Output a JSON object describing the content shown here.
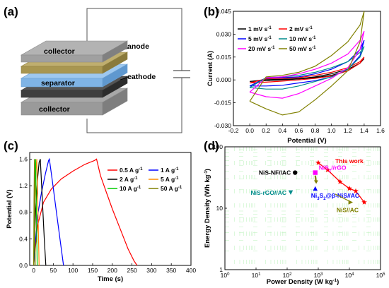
{
  "panels": {
    "a": {
      "label": "(a)",
      "layers": [
        {
          "name": "collector",
          "text": "collector",
          "color": "#9e9e9e"
        },
        {
          "name": "cathode",
          "text": "cathode",
          "color": "#4a4a4a"
        },
        {
          "name": "separator",
          "text": "separator",
          "color": "#7fb4e6"
        },
        {
          "name": "anode",
          "text": "anode",
          "color": "#b0a060"
        },
        {
          "name": "collector-top",
          "text": "collector",
          "color": "#9e9e9e"
        }
      ]
    },
    "b": {
      "label": "(b)"
    },
    "c": {
      "label": "(c)"
    },
    "d": {
      "label": "(d)"
    }
  },
  "chart_data": [
    {
      "panel": "b",
      "type": "line",
      "title": "",
      "xlabel": "Potential (V)",
      "ylabel": "Current (A)",
      "xlim": [
        -0.2,
        1.6
      ],
      "ylim": [
        -0.03,
        0.045
      ],
      "xticks": [
        "-0.2",
        "0.0",
        "0.2",
        "0.4",
        "0.6",
        "0.8",
        "1.0",
        "1.2",
        "1.4",
        "1.6"
      ],
      "yticks": [
        "-0.030",
        "-0.015",
        "0.000",
        "0.015",
        "0.030",
        "0.045"
      ],
      "legend_position": "top-left",
      "series": [
        {
          "name": "1 mV s",
          "sup": "-1",
          "color": "#000000",
          "x": [
            0.0,
            0.2,
            0.4,
            0.6,
            0.8,
            1.0,
            1.2,
            1.35,
            1.4,
            1.35,
            1.2,
            1.0,
            0.8,
            0.6,
            0.4,
            0.2,
            0.0
          ],
          "y": [
            -0.001,
            -0.0005,
            0.0,
            0.0006,
            0.0015,
            0.003,
            0.006,
            0.011,
            0.014,
            0.011,
            0.007,
            0.004,
            0.002,
            0.0008,
            0.0004,
            0.0002,
            -0.001
          ]
        },
        {
          "name": "2 mV s",
          "sup": "-1",
          "color": "#ff0000",
          "x": [
            0.0,
            0.2,
            0.4,
            0.6,
            0.8,
            1.0,
            1.2,
            1.35,
            1.4,
            1.35,
            1.2,
            1.0,
            0.8,
            0.6,
            0.4,
            0.2,
            0.0
          ],
          "y": [
            -0.002,
            -0.0015,
            -0.0008,
            0.0,
            0.001,
            0.0025,
            0.006,
            0.011,
            0.015,
            0.012,
            0.008,
            0.005,
            0.003,
            0.0015,
            0.001,
            0.0008,
            -0.002
          ]
        },
        {
          "name": "5 mV s",
          "sup": "-1",
          "color": "#0000ff",
          "x": [
            0.0,
            0.2,
            0.4,
            0.6,
            0.8,
            1.0,
            1.2,
            1.35,
            1.4,
            1.35,
            1.2,
            1.0,
            0.8,
            0.6,
            0.4,
            0.2,
            0.0
          ],
          "y": [
            -0.004,
            -0.004,
            -0.0035,
            -0.002,
            -0.0005,
            0.002,
            0.007,
            0.016,
            0.026,
            0.02,
            0.012,
            0.007,
            0.004,
            0.002,
            0.0015,
            0.0012,
            -0.004
          ]
        },
        {
          "name": "10 mV s",
          "sup": "-1",
          "color": "#008b8b",
          "x": [
            0.0,
            0.2,
            0.4,
            0.6,
            0.8,
            1.0,
            1.2,
            1.35,
            1.4,
            1.35,
            1.2,
            1.0,
            0.8,
            0.6,
            0.4,
            0.2,
            0.0
          ],
          "y": [
            -0.005,
            -0.006,
            -0.006,
            -0.004,
            -0.001,
            0.002,
            0.007,
            0.015,
            0.022,
            0.018,
            0.012,
            0.008,
            0.005,
            0.003,
            0.002,
            0.0015,
            -0.005
          ]
        },
        {
          "name": "20 mV s",
          "sup": "-1",
          "color": "#ff00ff",
          "x": [
            0.0,
            0.2,
            0.4,
            0.6,
            0.8,
            1.0,
            1.2,
            1.35,
            1.4,
            1.35,
            1.2,
            1.0,
            0.8,
            0.6,
            0.4,
            0.2,
            0.0
          ],
          "y": [
            -0.008,
            -0.011,
            -0.012,
            -0.009,
            -0.004,
            0.001,
            0.008,
            0.02,
            0.032,
            0.026,
            0.017,
            0.011,
            0.007,
            0.004,
            0.002,
            0.0015,
            -0.008
          ]
        },
        {
          "name": "50 mV s",
          "sup": "-1",
          "color": "#808000",
          "x": [
            0.0,
            0.2,
            0.4,
            0.6,
            0.8,
            1.0,
            1.2,
            1.35,
            1.4,
            1.35,
            1.2,
            1.0,
            0.8,
            0.6,
            0.4,
            0.2,
            0.0
          ],
          "y": [
            -0.014,
            -0.019,
            -0.023,
            -0.021,
            -0.013,
            -0.004,
            0.006,
            0.025,
            0.045,
            0.036,
            0.025,
            0.016,
            0.009,
            0.005,
            0.003,
            0.002,
            -0.014
          ]
        }
      ]
    },
    {
      "panel": "c",
      "type": "line",
      "title": "",
      "xlabel": "Time (s)",
      "ylabel": "Potential (V)",
      "xlim": [
        -10,
        400
      ],
      "ylim": [
        0.0,
        1.7
      ],
      "xticks": [
        "0",
        "50",
        "100",
        "150",
        "200",
        "250",
        "300",
        "350",
        "400"
      ],
      "yticks": [
        "0.0",
        "0.4",
        "0.8",
        "1.2",
        "1.6"
      ],
      "legend_position": "top-right",
      "series": [
        {
          "name": "0.5 A g",
          "sup": "-1",
          "color": "#ff0000",
          "x": [
            0,
            10,
            25,
            45,
            70,
            100,
            130,
            155,
            160,
            170,
            185,
            200,
            220,
            240,
            255,
            263
          ],
          "y": [
            0.0,
            0.6,
            0.95,
            1.15,
            1.3,
            1.42,
            1.52,
            1.58,
            1.6,
            1.35,
            1.1,
            0.85,
            0.55,
            0.25,
            0.07,
            0.0
          ]
        },
        {
          "name": "1 A g",
          "sup": "-1",
          "color": "#0000ff",
          "x": [
            0,
            10,
            20,
            30,
            38,
            40,
            48,
            58,
            68,
            76
          ],
          "y": [
            0.0,
            0.75,
            1.1,
            1.38,
            1.58,
            1.6,
            1.25,
            0.8,
            0.35,
            0.0
          ]
        },
        {
          "name": "2 A g",
          "sup": "-1",
          "color": "#000000",
          "x": [
            0,
            5,
            10,
            14,
            17,
            22,
            27,
            31
          ],
          "y": [
            0.0,
            0.8,
            1.3,
            1.55,
            1.6,
            1.0,
            0.4,
            0.0
          ]
        },
        {
          "name": "5 A g",
          "sup": "-1",
          "color": "#ff8c00",
          "x": [
            0,
            3,
            6,
            8,
            11,
            14
          ],
          "y": [
            0.0,
            0.9,
            1.45,
            1.6,
            0.8,
            0.0
          ]
        },
        {
          "name": "10 A g",
          "sup": "-1",
          "color": "#00cc00",
          "x": [
            0,
            2,
            4,
            5,
            7,
            9
          ],
          "y": [
            0.0,
            0.9,
            1.45,
            1.6,
            0.8,
            0.0
          ]
        },
        {
          "name": "50 A g",
          "sup": "-1",
          "color": "#808000",
          "x": [
            0,
            1,
            2,
            3,
            4
          ],
          "y": [
            0.0,
            1.0,
            1.6,
            0.8,
            0.0
          ]
        }
      ]
    },
    {
      "panel": "d",
      "type": "scatter",
      "title": "",
      "xlabel": "Power Density (W kg",
      "xlabel_sup": "-1",
      "xlabel_end": ")",
      "ylabel": "Energy Density (Wh kg",
      "ylabel_sup": "-1",
      "ylabel_end": ")",
      "xscale": "log",
      "yscale": "log",
      "xlim": [
        1,
        100000
      ],
      "ylim": [
        1,
        100
      ],
      "xticks": [
        {
          "base": "10",
          "exp": "0"
        },
        {
          "base": "10",
          "exp": "1"
        },
        {
          "base": "10",
          "exp": "2"
        },
        {
          "base": "10",
          "exp": "3"
        },
        {
          "base": "10",
          "exp": "4"
        },
        {
          "base": "10",
          "exp": "5"
        }
      ],
      "yticks": [
        "1",
        "10",
        "100"
      ],
      "this_work": {
        "label": "This work",
        "color": "#ff0000",
        "x": [
          1000,
          2000,
          5000,
          10000,
          16000,
          30000
        ],
        "y": [
          55,
          42,
          27,
          21,
          19,
          12.5
        ]
      },
      "points": [
        {
          "label": "NiS-NF//AC",
          "color": "#000000",
          "marker": "circle",
          "x": 180,
          "y": 38
        },
        {
          "label": "NiS",
          "sub": "2",
          "label_end": "//rGO",
          "color": "#ff00ff",
          "marker": "square",
          "x": 800,
          "y": 38
        },
        {
          "label": "NiS-rGO//AC",
          "color": "#008b8b",
          "marker": "triangle-down",
          "x": 130,
          "y": 18
        },
        {
          "label": "Ni",
          "sub": "3",
          "label_mid": "S",
          "sub2": "2",
          "label_end": "@β-NiS//AC",
          "color": "#0000ff",
          "marker": "triangle-up",
          "x": 800,
          "y": 21
        },
        {
          "label": "NiS//AC",
          "color": "#808000",
          "marker": "triangle-right",
          "x": 11000,
          "y": 12.5
        }
      ]
    }
  ]
}
